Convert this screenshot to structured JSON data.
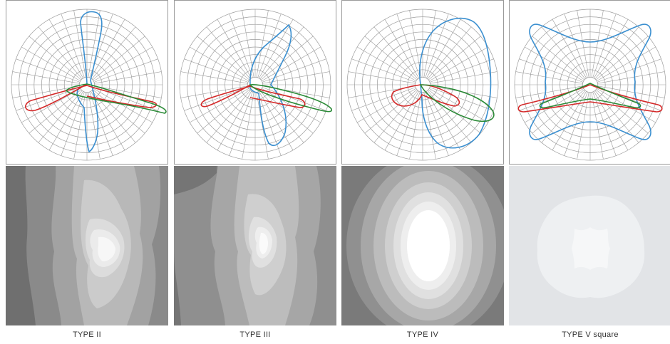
{
  "panels": [
    {
      "id": "type-ii",
      "caption": "TYPE II",
      "colors": {
        "blue": "#3a8fd0",
        "red": "#d42a2a",
        "green": "#2a8a36"
      },
      "contour_colors": [
        "#6f6f6f",
        "#8a8a8a",
        "#a2a2a2",
        "#b8b8b8",
        "#cbcbcb",
        "#dcdcdc",
        "#ebebeb",
        "#f7f7f7"
      ]
    },
    {
      "id": "type-iii",
      "caption": "TYPE III",
      "colors": {
        "blue": "#3a8fd0",
        "red": "#d42a2a",
        "green": "#2a8a36"
      },
      "contour_colors": [
        "#757575",
        "#8f8f8f",
        "#a6a6a6",
        "#bcbcbc",
        "#cfcfcf",
        "#e0e0e0",
        "#eeeeee",
        "#fafafa"
      ]
    },
    {
      "id": "type-iv",
      "caption": "TYPE IV",
      "colors": {
        "blue": "#3a8fd0",
        "red": "#d42a2a",
        "green": "#2a8a36"
      },
      "contour_colors": [
        "#7a7a7a",
        "#909090",
        "#a7a7a7",
        "#bcbcbc",
        "#cfcfcf",
        "#e0e0e0",
        "#eeeeee",
        "#ffffff"
      ]
    },
    {
      "id": "type-v",
      "caption": "TYPE V square",
      "colors": {
        "blue": "#3a8fd0",
        "red": "#d42a2a",
        "green": "#2a8a36"
      },
      "contour_colors": [
        "#e2e4e7",
        "#eef0f2",
        "#f6f7f8"
      ]
    }
  ]
}
